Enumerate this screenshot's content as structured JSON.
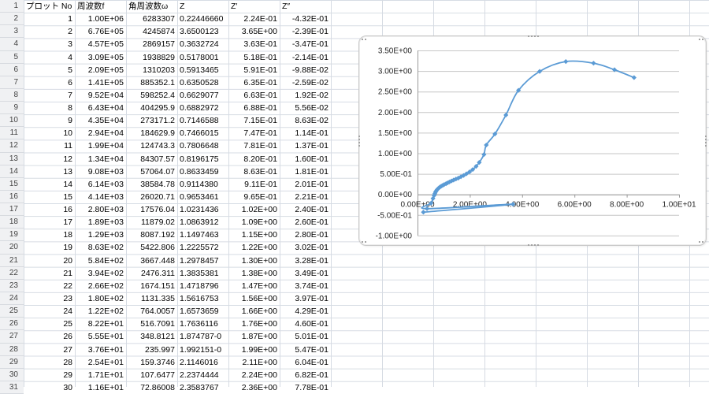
{
  "sheet": {
    "row_numbers": [
      "1",
      "2",
      "3",
      "4",
      "5",
      "6",
      "7",
      "8",
      "9",
      "10",
      "11",
      "12",
      "13",
      "14",
      "15",
      "16",
      "17",
      "18",
      "19",
      "20",
      "21",
      "22",
      "23",
      "24",
      "25",
      "26",
      "27",
      "28",
      "29",
      "30",
      "31"
    ],
    "header_row": [
      "プロット No",
      "周波数f",
      "角周波数ω",
      "Z",
      "Z′",
      "Z″"
    ],
    "columns_align": [
      "right",
      "right",
      "right",
      "left",
      "right",
      "right"
    ],
    "rows": [
      [
        "1",
        "1.00E+06",
        "6283307",
        "0.22446660",
        "2.24E-01",
        "-4.32E-01"
      ],
      [
        "2",
        "6.76E+05",
        "4245874",
        "3.6500123",
        "3.65E+00",
        "-2.39E-01"
      ],
      [
        "3",
        "4.57E+05",
        "2869157",
        "0.3632724",
        "3.63E-01",
        "-3.47E-01"
      ],
      [
        "4",
        "3.09E+05",
        "1938829",
        "0.5178001",
        "5.18E-01",
        "-2.14E-01"
      ],
      [
        "5",
        "2.09E+05",
        "1310203",
        "0.5913465",
        "5.91E-01",
        "-9.88E-02"
      ],
      [
        "6",
        "1.41E+05",
        "885352.1",
        "0.6350528",
        "6.35E-01",
        "-2.59E-02"
      ],
      [
        "7",
        "9.52E+04",
        "598252.4",
        "0.6629077",
        "6.63E-01",
        "1.92E-02"
      ],
      [
        "8",
        "6.43E+04",
        "404295.9",
        "0.6882972",
        "6.88E-01",
        "5.56E-02"
      ],
      [
        "9",
        "4.35E+04",
        "273171.2",
        "0.7146588",
        "7.15E-01",
        "8.63E-02"
      ],
      [
        "10",
        "2.94E+04",
        "184629.9",
        "0.7466015",
        "7.47E-01",
        "1.14E-01"
      ],
      [
        "11",
        "1.99E+04",
        "124743.3",
        "0.7806648",
        "7.81E-01",
        "1.37E-01"
      ],
      [
        "12",
        "1.34E+04",
        "84307.57",
        "0.8196175",
        "8.20E-01",
        "1.60E-01"
      ],
      [
        "13",
        "9.08E+03",
        "57064.07",
        "0.8633459",
        "8.63E-01",
        "1.81E-01"
      ],
      [
        "14",
        "6.14E+03",
        "38584.78",
        "0.9114380",
        "9.11E-01",
        "2.01E-01"
      ],
      [
        "15",
        "4.14E+03",
        "26020.71",
        "0.9653461",
        "9.65E-01",
        "2.21E-01"
      ],
      [
        "16",
        "2.80E+03",
        "17576.04",
        "1.0231436",
        "1.02E+00",
        "2.40E-01"
      ],
      [
        "17",
        "1.89E+03",
        "11879.02",
        "1.0863912",
        "1.09E+00",
        "2.60E-01"
      ],
      [
        "18",
        "1.29E+03",
        "8087.192",
        "1.1497463",
        "1.15E+00",
        "2.80E-01"
      ],
      [
        "19",
        "8.63E+02",
        "5422.806",
        "1.2225572",
        "1.22E+00",
        "3.02E-01"
      ],
      [
        "20",
        "5.84E+02",
        "3667.448",
        "1.2978457",
        "1.30E+00",
        "3.28E-01"
      ],
      [
        "21",
        "3.94E+02",
        "2476.311",
        "1.3835381",
        "1.38E+00",
        "3.49E-01"
      ],
      [
        "22",
        "2.66E+02",
        "1674.151",
        "1.4718796",
        "1.47E+00",
        "3.74E-01"
      ],
      [
        "23",
        "1.80E+02",
        "1131.335",
        "1.5616753",
        "1.56E+00",
        "3.97E-01"
      ],
      [
        "24",
        "1.22E+02",
        "764.0057",
        "1.6573659",
        "1.66E+00",
        "4.29E-01"
      ],
      [
        "25",
        "8.22E+01",
        "516.7091",
        "1.7636116",
        "1.76E+00",
        "4.60E-01"
      ],
      [
        "26",
        "5.55E+01",
        "348.8121",
        "1.874787-0",
        "1.87E+00",
        "5.01E-01"
      ],
      [
        "27",
        "3.76E+01",
        "235.997",
        "1.992151-0",
        "1.99E+00",
        "5.47E-01"
      ],
      [
        "28",
        "2.54E+01",
        "159.3746",
        "2.1146016",
        "2.11E+00",
        "6.04E-01"
      ],
      [
        "29",
        "1.71E+01",
        "107.6477",
        "2.2374444",
        "2.24E+00",
        "6.82E-01"
      ],
      [
        "30",
        "1.16E+01",
        "72.86008",
        "2.3583767",
        "2.36E+00",
        "7.78E-01"
      ]
    ]
  },
  "chart_data": {
    "type": "scatter",
    "title": "",
    "xlabel": "",
    "ylabel": "",
    "xlim": [
      0,
      10
    ],
    "ylim": [
      -1,
      3.5
    ],
    "grid": true,
    "legend": "none",
    "line_color": "#5b9bd5",
    "marker": "diamond",
    "x_tick_labels": [
      "0.00E+00",
      "2.00E+00",
      "4.00E+00",
      "6.00E+00",
      "8.00E+00",
      "1.00E+01"
    ],
    "x_tick_values": [
      0,
      2,
      4,
      6,
      8,
      10
    ],
    "y_tick_labels": [
      "3.50E+00",
      "3.00E+00",
      "2.50E+00",
      "2.00E+00",
      "1.50E+00",
      "1.00E+00",
      "5.00E-01",
      "0.00E+00",
      "-5.00E-01",
      "-1.00E+00"
    ],
    "y_tick_values": [
      3.5,
      3,
      2.5,
      2,
      1.5,
      1,
      0.5,
      0,
      -0.5,
      -1
    ],
    "series": [
      {
        "name": "Z'' vs Z'",
        "points": [
          [
            0.224,
            -0.432
          ],
          [
            3.65,
            -0.239
          ],
          [
            0.363,
            -0.347
          ],
          [
            0.518,
            -0.214
          ],
          [
            0.591,
            -0.099
          ],
          [
            0.635,
            -0.026
          ],
          [
            0.663,
            0.019
          ],
          [
            0.688,
            0.056
          ],
          [
            0.715,
            0.086
          ],
          [
            0.747,
            0.114
          ],
          [
            0.781,
            0.137
          ],
          [
            0.82,
            0.16
          ],
          [
            0.863,
            0.181
          ],
          [
            0.911,
            0.201
          ],
          [
            0.965,
            0.221
          ],
          [
            1.02,
            0.24
          ],
          [
            1.09,
            0.26
          ],
          [
            1.15,
            0.28
          ],
          [
            1.22,
            0.302
          ],
          [
            1.3,
            0.328
          ],
          [
            1.38,
            0.349
          ],
          [
            1.47,
            0.374
          ],
          [
            1.56,
            0.397
          ],
          [
            1.66,
            0.429
          ],
          [
            1.76,
            0.46
          ],
          [
            1.87,
            0.501
          ],
          [
            1.99,
            0.547
          ],
          [
            2.11,
            0.604
          ],
          [
            2.24,
            0.682
          ],
          [
            2.36,
            0.778
          ],
          [
            2.54,
            0.97
          ],
          [
            2.63,
            1.2
          ],
          [
            2.96,
            1.47
          ],
          [
            3.38,
            1.93
          ],
          [
            3.86,
            2.53
          ],
          [
            4.67,
            2.99
          ],
          [
            5.67,
            3.23
          ],
          [
            6.73,
            3.19
          ],
          [
            7.53,
            3.03
          ],
          [
            8.28,
            2.84
          ]
        ]
      }
    ]
  }
}
